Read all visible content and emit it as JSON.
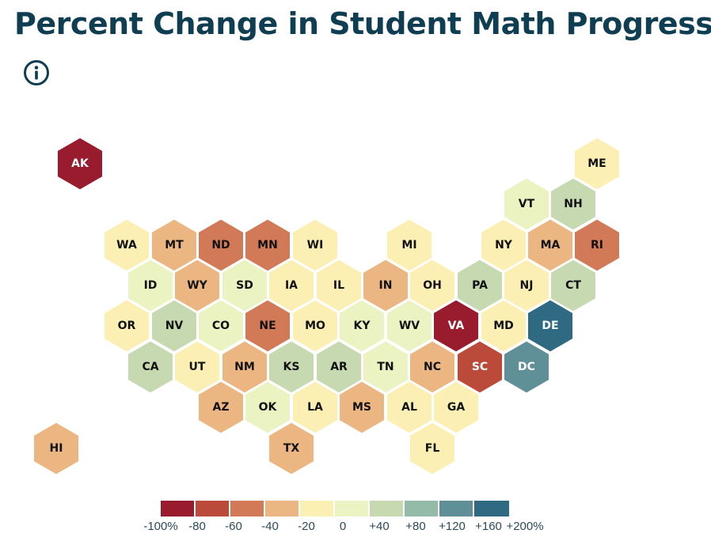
{
  "title": "Percent Change in Student Math Progress",
  "info_icon": "info-circle-icon",
  "colors": {
    "title": "#0f3d52",
    "scale": [
      "#981b2e",
      "#bb4a3b",
      "#d27a58",
      "#ecb682",
      "#fbefb4",
      "#ebf3c2",
      "#c7d9b1",
      "#94bba7",
      "#5f8f97",
      "#2e6a82"
    ]
  },
  "map_data": {
    "type": "hex-tile-map",
    "value_unit": "percent change",
    "states": [
      {
        "abbr": "AK",
        "color_bin": 0
      },
      {
        "abbr": "ME",
        "color_bin": 4
      },
      {
        "abbr": "VT",
        "color_bin": 5
      },
      {
        "abbr": "NH",
        "color_bin": 6
      },
      {
        "abbr": "WA",
        "color_bin": 4
      },
      {
        "abbr": "MT",
        "color_bin": 3
      },
      {
        "abbr": "ND",
        "color_bin": 2
      },
      {
        "abbr": "MN",
        "color_bin": 2
      },
      {
        "abbr": "WI",
        "color_bin": 4
      },
      {
        "abbr": "MI",
        "color_bin": 4
      },
      {
        "abbr": "NY",
        "color_bin": 4
      },
      {
        "abbr": "MA",
        "color_bin": 3
      },
      {
        "abbr": "RI",
        "color_bin": 2
      },
      {
        "abbr": "ID",
        "color_bin": 5
      },
      {
        "abbr": "WY",
        "color_bin": 3
      },
      {
        "abbr": "SD",
        "color_bin": 5
      },
      {
        "abbr": "IA",
        "color_bin": 4
      },
      {
        "abbr": "IL",
        "color_bin": 4
      },
      {
        "abbr": "IN",
        "color_bin": 3
      },
      {
        "abbr": "OH",
        "color_bin": 4
      },
      {
        "abbr": "PA",
        "color_bin": 6
      },
      {
        "abbr": "NJ",
        "color_bin": 4
      },
      {
        "abbr": "CT",
        "color_bin": 6
      },
      {
        "abbr": "OR",
        "color_bin": 4
      },
      {
        "abbr": "NV",
        "color_bin": 6
      },
      {
        "abbr": "CO",
        "color_bin": 5
      },
      {
        "abbr": "NE",
        "color_bin": 2
      },
      {
        "abbr": "MO",
        "color_bin": 4
      },
      {
        "abbr": "KY",
        "color_bin": 5
      },
      {
        "abbr": "WV",
        "color_bin": 5
      },
      {
        "abbr": "VA",
        "color_bin": 0
      },
      {
        "abbr": "MD",
        "color_bin": 4
      },
      {
        "abbr": "DE",
        "color_bin": 9
      },
      {
        "abbr": "CA",
        "color_bin": 6
      },
      {
        "abbr": "UT",
        "color_bin": 4
      },
      {
        "abbr": "NM",
        "color_bin": 3
      },
      {
        "abbr": "KS",
        "color_bin": 6
      },
      {
        "abbr": "AR",
        "color_bin": 6
      },
      {
        "abbr": "TN",
        "color_bin": 5
      },
      {
        "abbr": "NC",
        "color_bin": 3
      },
      {
        "abbr": "SC",
        "color_bin": 1
      },
      {
        "abbr": "DC",
        "color_bin": 8
      },
      {
        "abbr": "AZ",
        "color_bin": 3
      },
      {
        "abbr": "OK",
        "color_bin": 5
      },
      {
        "abbr": "LA",
        "color_bin": 4
      },
      {
        "abbr": "MS",
        "color_bin": 3
      },
      {
        "abbr": "AL",
        "color_bin": 4
      },
      {
        "abbr": "GA",
        "color_bin": 4
      },
      {
        "abbr": "HI",
        "color_bin": 3
      },
      {
        "abbr": "TX",
        "color_bin": 3
      },
      {
        "abbr": "FL",
        "color_bin": 4
      }
    ]
  },
  "legend": {
    "ticks": [
      "-100%",
      "-80",
      "-60",
      "-40",
      "-20",
      "0",
      "+40",
      "+80",
      "+120",
      "+160",
      "+200%"
    ]
  }
}
